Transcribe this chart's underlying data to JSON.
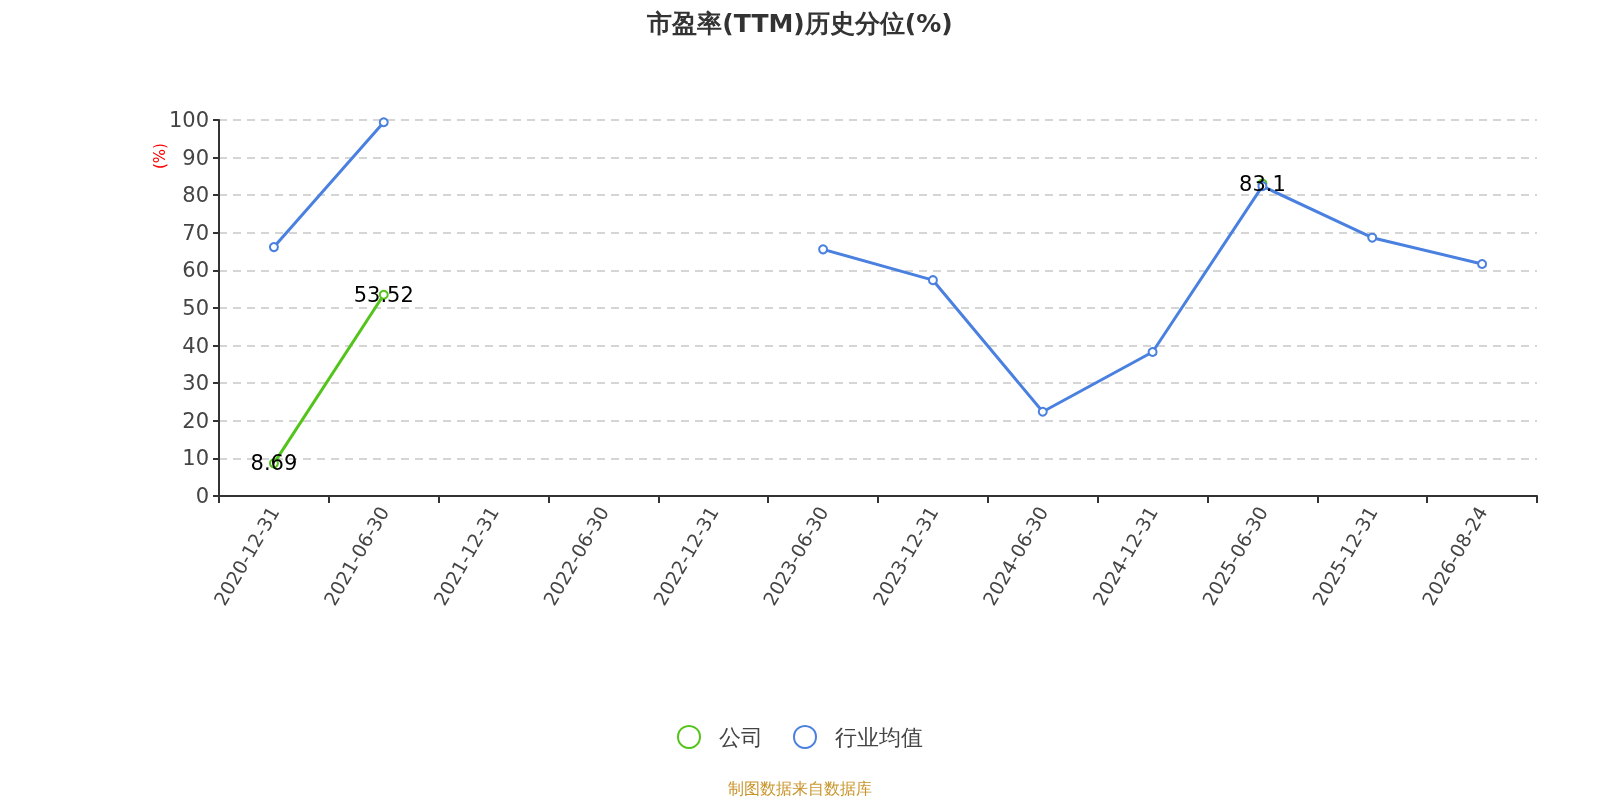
{
  "chart_data": {
    "type": "line",
    "title": "市盈率(TTM)历史分位(%)",
    "ylabel": "(%)",
    "categories": [
      "2020-12-31",
      "2021-06-30",
      "2021-12-31",
      "2022-06-30",
      "2022-12-31",
      "2023-06-30",
      "2023-12-31",
      "2024-06-30",
      "2024-12-31",
      "2025-06-30",
      "2025-12-31",
      "2026-08-24"
    ],
    "series": [
      {
        "name": "公司",
        "color": "#52c41a",
        "values": [
          8.69,
          53.52,
          null,
          null,
          null,
          null,
          null,
          null,
          null,
          83.1,
          null,
          null
        ],
        "value_labels": [
          "8.69",
          "53.52",
          null,
          null,
          null,
          null,
          null,
          null,
          null,
          "83.1",
          null,
          null
        ]
      },
      {
        "name": "行业均值",
        "color": "#4a80e0",
        "values": [
          66.2,
          99.4,
          null,
          null,
          null,
          65.6,
          57.4,
          22.4,
          38.3,
          82.4,
          68.7,
          61.7
        ]
      }
    ],
    "ylim": [
      0,
      100
    ],
    "yticks": [
      0,
      10,
      20,
      30,
      40,
      50,
      60,
      70,
      80,
      90,
      100
    ],
    "grid": "y",
    "legend": "bottom",
    "marker": "circle",
    "line_style": "solid",
    "annotations": [
      "制图数据来自数据库"
    ]
  }
}
